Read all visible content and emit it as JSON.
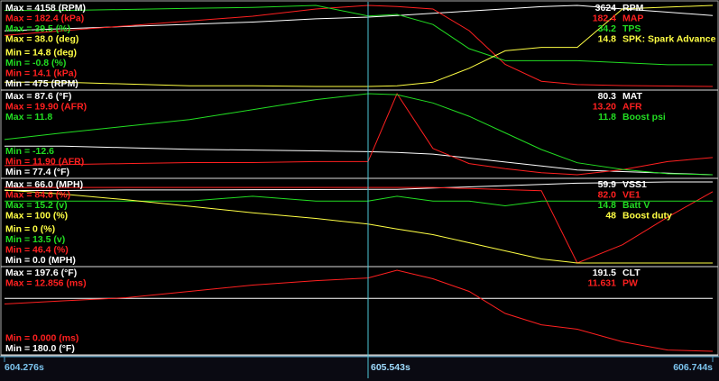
{
  "chart_data": [
    {
      "type": "line",
      "x": [
        604.276,
        604.48,
        604.7,
        604.921,
        605.141,
        605.361,
        605.543,
        605.644,
        605.769,
        605.895,
        606.021,
        606.147,
        606.272,
        606.43,
        606.587,
        606.744
      ],
      "series": [
        {
          "name": "RPM",
          "color": "#ffffff",
          "cursor_label": "3624",
          "ylim": [
            475,
            4158
          ],
          "yticks": [
            {
              "value": 475,
              "label": "Min = 475 (RPM)"
            },
            {
              "value": 4158,
              "label": "Max = 4158 (RPM)"
            }
          ],
          "values": [
            3000,
            3100,
            3200,
            3300,
            3400,
            3550,
            3624,
            3700,
            3800,
            3900,
            4000,
            4100,
            4158,
            4000,
            3850,
            3700
          ]
        },
        {
          "name": "MAP",
          "color": "#ff2020",
          "cursor_label": "182.4",
          "ylim": [
            14.1,
            182.4
          ],
          "yticks": [
            {
              "value": 14.1,
              "label": "Min = 14.1 (kPa)"
            },
            {
              "value": 182.4,
              "label": "Max = 182.4 (kPa)"
            }
          ],
          "values": [
            120,
            130,
            140,
            150,
            160,
            175,
            182.4,
            180,
            175,
            130,
            60,
            25,
            18,
            16,
            15,
            14.1
          ]
        },
        {
          "name": "TPS",
          "color": "#22dd22",
          "cursor_label": "34.2",
          "ylim": [
            -0.8,
            39.5
          ],
          "yticks": [
            {
              "value": -0.8,
              "label": "Min = -0.8 (%)"
            },
            {
              "value": 39.5,
              "label": "Max = 39.5 (%)"
            }
          ],
          "values": [
            37,
            37,
            37.5,
            38,
            38.5,
            39.5,
            34.2,
            35,
            30,
            18,
            12,
            12,
            12,
            11,
            10,
            10
          ]
        },
        {
          "name": "SPK: Spark Advance",
          "color": "#ffff44",
          "cursor_label": "14.8",
          "ylim": [
            14.8,
            38.0
          ],
          "yticks": [
            {
              "value": 14.8,
              "label": "Min = 14.8 (deg)"
            },
            {
              "value": 38.0,
              "label": "Max = 38.0 (deg)"
            }
          ],
          "values": [
            16,
            16,
            15.5,
            15,
            15,
            14.8,
            14.8,
            15,
            16,
            20,
            25,
            26,
            26,
            37,
            37.5,
            38
          ]
        }
      ]
    },
    {
      "type": "line",
      "x": [
        604.276,
        604.48,
        604.7,
        604.921,
        605.141,
        605.361,
        605.543,
        605.644,
        605.769,
        605.895,
        606.021,
        606.147,
        606.272,
        606.43,
        606.587,
        606.744
      ],
      "series": [
        {
          "name": "MAT",
          "color": "#ffffff",
          "cursor_label": "80.3",
          "ylim": [
            77.4,
            87.6
          ],
          "yticks": [
            {
              "value": 77.4,
              "label": "Min = 77.4 (°F)"
            },
            {
              "value": 87.6,
              "label": "Max = 87.6 (°F)"
            }
          ],
          "values": [
            81,
            81,
            80.8,
            80.6,
            80.5,
            80.4,
            80.3,
            80.2,
            80,
            79.5,
            79,
            78.5,
            78,
            77.8,
            77.6,
            77.4
          ]
        },
        {
          "name": "AFR",
          "color": "#ff2020",
          "cursor_label": "13.20",
          "ylim": [
            11.9,
            19.9
          ],
          "yticks": [
            {
              "value": 11.9,
              "label": "Min = 11.90 (AFR)"
            },
            {
              "value": 19.9,
              "label": "Max = 19.90 (AFR)"
            }
          ],
          "values": [
            12.8,
            12.9,
            13,
            13.1,
            13.1,
            13.2,
            13.2,
            19.9,
            14.5,
            13,
            12.5,
            12.1,
            11.9,
            12.4,
            13.2,
            13.6
          ]
        },
        {
          "name": "Boost psi",
          "color": "#22dd22",
          "cursor_label": "11.8",
          "ylim": [
            -12.6,
            11.8
          ],
          "yticks": [
            {
              "value": -12.6,
              "label": "Min = -12.6"
            },
            {
              "value": 11.8,
              "label": "Max = 11.8"
            }
          ],
          "values": [
            -2,
            0,
            2,
            4,
            7,
            10,
            11.8,
            11.5,
            9,
            5,
            0,
            -5,
            -9,
            -11,
            -12.3,
            -12.6
          ]
        }
      ]
    },
    {
      "type": "line",
      "x": [
        604.276,
        604.48,
        604.7,
        604.921,
        605.141,
        605.361,
        605.543,
        605.644,
        605.769,
        605.895,
        606.021,
        606.147,
        606.272,
        606.43,
        606.587,
        606.744
      ],
      "series": [
        {
          "name": "VSS1",
          "color": "#ffffff",
          "cursor_label": "59.9",
          "ylim": [
            0.0,
            66.0
          ],
          "yticks": [
            {
              "value": 0.0,
              "label": "Min = 0.0 (MPH)"
            },
            {
              "value": 66.0,
              "label": "Max = 66.0 (MPH)"
            }
          ],
          "values": [
            59,
            59,
            59.5,
            59.5,
            59.7,
            59.8,
            59.9,
            60,
            61,
            62,
            63,
            64,
            65,
            65.5,
            66,
            66
          ]
        },
        {
          "name": "VE1",
          "color": "#ff2020",
          "cursor_label": "82.0",
          "ylim": [
            46.4,
            84.6
          ],
          "yticks": [
            {
              "value": 46.4,
              "label": "Min = 46.4 (%)"
            },
            {
              "value": 84.6,
              "label": "Max = 84.6 (%)"
            }
          ],
          "values": [
            82,
            82,
            82,
            82,
            82,
            82,
            82,
            82,
            82,
            81.5,
            81,
            80.5,
            46.4,
            55,
            68,
            80
          ]
        },
        {
          "name": "Batt V",
          "color": "#22dd22",
          "cursor_label": "14.8",
          "ylim": [
            13.5,
            15.2
          ],
          "yticks": [
            {
              "value": 13.5,
              "label": "Min = 13.5 (v)"
            },
            {
              "value": 15.2,
              "label": "Max = 15.2 (v)"
            }
          ],
          "values": [
            14.8,
            14.8,
            14.8,
            14.8,
            14.9,
            14.8,
            14.8,
            14.9,
            14.8,
            14.8,
            14.7,
            14.8,
            14.8,
            14.8,
            14.8,
            14.8
          ]
        },
        {
          "name": "Boost duty",
          "color": "#ffff44",
          "cursor_label": "48",
          "ylim": [
            0,
            100
          ],
          "yticks": [
            {
              "value": 0,
              "label": "Min = 0 (%)"
            },
            {
              "value": 100,
              "label": "Max = 100 (%)"
            }
          ],
          "values": [
            90,
            85,
            78,
            70,
            62,
            55,
            48,
            42,
            35,
            25,
            15,
            5,
            0,
            0,
            0,
            0
          ]
        }
      ]
    },
    {
      "type": "line",
      "x": [
        604.276,
        604.48,
        604.7,
        604.921,
        605.141,
        605.361,
        605.543,
        605.644,
        605.769,
        605.895,
        606.021,
        606.147,
        606.272,
        606.43,
        606.587,
        606.744
      ],
      "series": [
        {
          "name": "CLT",
          "color": "#ffffff",
          "cursor_label": "191.5",
          "ylim": [
            180.0,
            197.6
          ],
          "yticks": [
            {
              "value": 180.0,
              "label": "Min = 180.0 (°F)"
            },
            {
              "value": 197.6,
              "label": "Max = 197.6 (°F)"
            }
          ],
          "values": [
            191.5,
            191.5,
            191.5,
            191.5,
            191.5,
            191.5,
            191.5,
            191.5,
            191.5,
            191.5,
            191.5,
            191.5,
            191.5,
            191.5,
            191.5,
            191.5
          ]
        },
        {
          "name": "PW",
          "color": "#ff2020",
          "cursor_label": "11.631",
          "ylim": [
            0.0,
            12.856
          ],
          "yticks": [
            {
              "value": 0.0,
              "label": "Min = 0.000 (ms)"
            },
            {
              "value": 12.856,
              "label": "Max = 12.856 (ms)"
            }
          ],
          "values": [
            7.5,
            8,
            8.5,
            9.5,
            10.5,
            11.2,
            11.631,
            12.856,
            11.5,
            9.5,
            6,
            4.2,
            3.5,
            1.5,
            0.2,
            0
          ]
        }
      ]
    }
  ],
  "time_axis": {
    "xlim": [
      604.276,
      606.744
    ],
    "xticks": [
      {
        "value": 604.276,
        "label": "604.276s"
      },
      {
        "value": 606.744,
        "label": "606.744s"
      }
    ],
    "cursor": {
      "value": 605.543,
      "label": "605.543s"
    }
  }
}
